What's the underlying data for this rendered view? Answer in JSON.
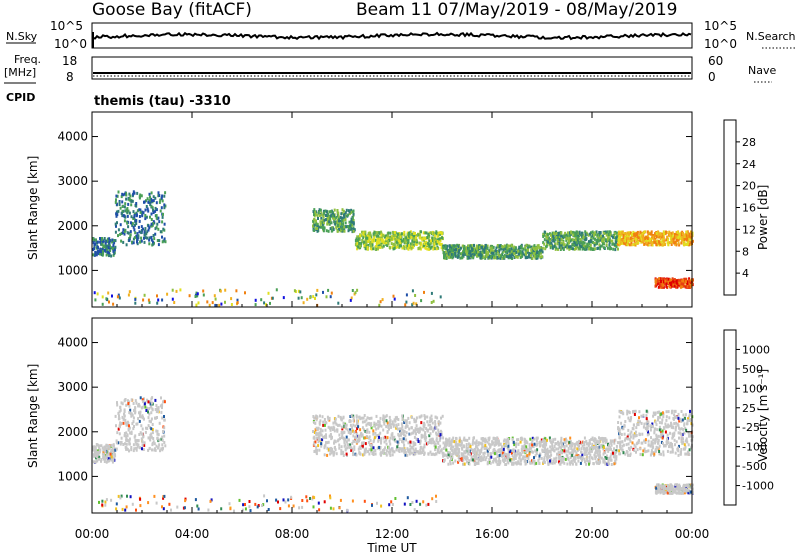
{
  "header": {
    "station": "Goose Bay (fitACF)",
    "beam_date": "Beam 11 07/May/2019 - 08/May/2019"
  },
  "top_panels": {
    "nsky_label": "N.Sky",
    "nsky_left_ticks": [
      "10^5",
      "10^0"
    ],
    "nsky_right_ticks": [
      "10^5",
      "10^0"
    ],
    "nsearch_label": "N.Search",
    "freq_label": "Freq.",
    "freq_unit": "[MHz]",
    "freq_ticks": [
      "18",
      "8"
    ],
    "nave_ticks": [
      "60",
      "0"
    ],
    "nave_label": "Nave",
    "cpid_label": "CPID",
    "cpid_text": "themis (tau) -3310"
  },
  "colors": {
    "power": [
      "#1010e0",
      "#1f4fa8",
      "#2f7a78",
      "#4aa055",
      "#90c040",
      "#e0e020",
      "#f0b020",
      "#f08010",
      "#e84010",
      "#e00000"
    ],
    "velocity": [
      "#e00000",
      "#ff5010",
      "#ff9020",
      "#f0c020",
      "#c8c8c8",
      "#c8c8c8",
      "#60c030",
      "#2f8a50",
      "#1f5aa0",
      "#1010c0"
    ]
  },
  "chart_data": [
    {
      "type": "heatmap",
      "name": "power",
      "xlabel": "",
      "ylabel": "Slant Range [km]",
      "x_range": [
        "00:00",
        "00:00"
      ],
      "ylim": [
        180,
        4550
      ],
      "yticks": [
        "1000",
        "2000",
        "3000",
        "4000"
      ],
      "colorbar_label": "Power [dB]",
      "colorbar_ticks": [
        "4",
        "8",
        "12",
        "16",
        "20",
        "24",
        "28"
      ],
      "colorbar_range": [
        0,
        30
      ],
      "bands": [
        {
          "t0": 0.0,
          "t1": 0.9,
          "r0": 1350,
          "r1": 1750,
          "level": 2
        },
        {
          "t0": 0.9,
          "t1": 2.9,
          "r0": 1600,
          "r1": 2800,
          "level": 2
        },
        {
          "t0": 8.8,
          "t1": 10.5,
          "r0": 1900,
          "r1": 2400,
          "level": 3
        },
        {
          "t0": 10.5,
          "t1": 14.0,
          "r0": 1500,
          "r1": 1900,
          "level": 4
        },
        {
          "t0": 14.0,
          "t1": 18.0,
          "r0": 1300,
          "r1": 1600,
          "level": 3
        },
        {
          "t0": 18.0,
          "t1": 21.0,
          "r0": 1500,
          "r1": 1900,
          "level": 3
        },
        {
          "t0": 21.0,
          "t1": 24.0,
          "r0": 1600,
          "r1": 1900,
          "level": 6
        },
        {
          "t0": 22.5,
          "t1": 24.0,
          "r0": 650,
          "r1": 850,
          "level": 8
        }
      ]
    },
    {
      "type": "heatmap",
      "name": "velocity",
      "xlabel": "Time UT",
      "ylabel": "Slant Range [km]",
      "xticks": [
        "00:00",
        "04:00",
        "08:00",
        "12:00",
        "16:00",
        "20:00",
        "00:00"
      ],
      "ylim": [
        180,
        4550
      ],
      "yticks": [
        "1000",
        "2000",
        "3000",
        "4000"
      ],
      "colorbar_label": "Velocity [m s⁻¹]",
      "colorbar_ticks": [
        "1000",
        "500",
        "100",
        "25",
        "-25",
        "-100",
        "-500",
        "-1000"
      ],
      "bands": [
        {
          "t0": 0.0,
          "t1": 0.9,
          "r0": 1350,
          "r1": 1750,
          "level": 5
        },
        {
          "t0": 0.9,
          "t1": 2.9,
          "r0": 1600,
          "r1": 2800,
          "level": 5
        },
        {
          "t0": 8.8,
          "t1": 14.0,
          "r0": 1500,
          "r1": 2400,
          "level": 5
        },
        {
          "t0": 14.0,
          "t1": 21.0,
          "r0": 1300,
          "r1": 1900,
          "level": 5
        },
        {
          "t0": 21.0,
          "t1": 24.0,
          "r0": 1500,
          "r1": 2500,
          "level": 5
        },
        {
          "t0": 22.5,
          "t1": 24.0,
          "r0": 650,
          "r1": 850,
          "level": 5
        }
      ]
    }
  ]
}
